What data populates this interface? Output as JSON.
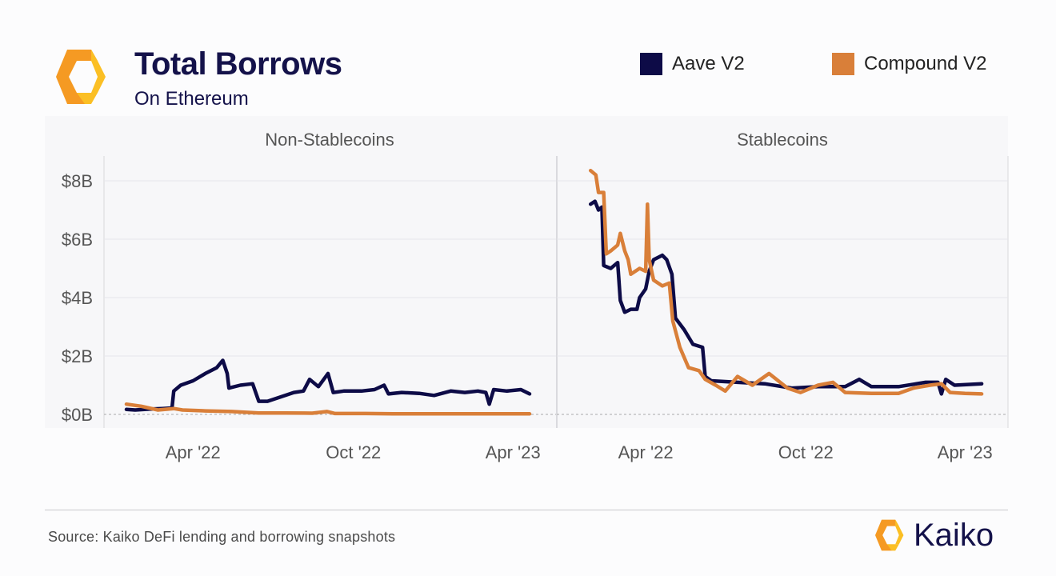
{
  "header": {
    "title": "Total Borrows",
    "subtitle": "On Ethereum"
  },
  "legend": [
    {
      "label": "Aave V2",
      "color": "#0d0b47"
    },
    {
      "label": "Compound V2",
      "color": "#d97f39"
    }
  ],
  "footer": {
    "source": "Source: Kaiko DeFi lending and borrowing snapshots",
    "brand": "Kaiko"
  },
  "colors": {
    "aave": "#0d0b47",
    "compound": "#d97f39",
    "brand_orange": "#f59a23",
    "brand_yellow": "#fbbf24"
  },
  "chart_data": [
    {
      "type": "line",
      "title": "Non-Stablecoins",
      "x_ticks": [
        "Apr '22",
        "Oct '22",
        "Apr '23"
      ],
      "y_ticks": [
        "$0B",
        "$2B",
        "$4B",
        "$6B",
        "$8B"
      ],
      "xlim": [
        "2022-01-15",
        "2023-04-30"
      ],
      "ylim": [
        0,
        8.5
      ],
      "unit": "$B",
      "series": [
        {
          "name": "Aave V2",
          "color": "#0d0b47",
          "points": [
            [
              "2022-01-15",
              0.17
            ],
            [
              "2022-01-25",
              0.15
            ],
            [
              "2022-02-10",
              0.18
            ],
            [
              "2022-02-25",
              0.2
            ],
            [
              "2022-03-08",
              0.22
            ],
            [
              "2022-03-10",
              0.8
            ],
            [
              "2022-03-18",
              1.0
            ],
            [
              "2022-04-01",
              1.15
            ],
            [
              "2022-04-15",
              1.4
            ],
            [
              "2022-04-28",
              1.6
            ],
            [
              "2022-05-05",
              1.85
            ],
            [
              "2022-05-10",
              1.4
            ],
            [
              "2022-05-12",
              0.9
            ],
            [
              "2022-05-25",
              1.0
            ],
            [
              "2022-06-08",
              1.05
            ],
            [
              "2022-06-15",
              0.45
            ],
            [
              "2022-06-25",
              0.45
            ],
            [
              "2022-07-10",
              0.6
            ],
            [
              "2022-07-25",
              0.75
            ],
            [
              "2022-08-05",
              0.8
            ],
            [
              "2022-08-12",
              1.2
            ],
            [
              "2022-08-22",
              0.95
            ],
            [
              "2022-09-02",
              1.4
            ],
            [
              "2022-09-08",
              0.75
            ],
            [
              "2022-09-20",
              0.8
            ],
            [
              "2022-10-10",
              0.8
            ],
            [
              "2022-10-25",
              0.85
            ],
            [
              "2022-11-05",
              1.0
            ],
            [
              "2022-11-10",
              0.7
            ],
            [
              "2022-11-25",
              0.75
            ],
            [
              "2022-12-15",
              0.72
            ],
            [
              "2023-01-01",
              0.65
            ],
            [
              "2023-01-20",
              0.8
            ],
            [
              "2023-02-05",
              0.75
            ],
            [
              "2023-02-20",
              0.8
            ],
            [
              "2023-03-01",
              0.75
            ],
            [
              "2023-03-05",
              0.35
            ],
            [
              "2023-03-10",
              0.85
            ],
            [
              "2023-03-25",
              0.8
            ],
            [
              "2023-04-10",
              0.85
            ],
            [
              "2023-04-20",
              0.7
            ]
          ]
        },
        {
          "name": "Compound V2",
          "color": "#d97f39",
          "points": [
            [
              "2022-01-15",
              0.35
            ],
            [
              "2022-02-01",
              0.28
            ],
            [
              "2022-02-20",
              0.15
            ],
            [
              "2022-03-10",
              0.2
            ],
            [
              "2022-03-20",
              0.15
            ],
            [
              "2022-04-15",
              0.12
            ],
            [
              "2022-05-15",
              0.1
            ],
            [
              "2022-06-15",
              0.05
            ],
            [
              "2022-07-15",
              0.05
            ],
            [
              "2022-08-15",
              0.04
            ],
            [
              "2022-09-01",
              0.1
            ],
            [
              "2022-09-10",
              0.03
            ],
            [
              "2022-10-15",
              0.03
            ],
            [
              "2022-11-15",
              0.02
            ],
            [
              "2022-12-15",
              0.02
            ],
            [
              "2023-01-15",
              0.02
            ],
            [
              "2023-02-15",
              0.02
            ],
            [
              "2023-03-15",
              0.02
            ],
            [
              "2023-04-20",
              0.02
            ]
          ]
        }
      ]
    },
    {
      "type": "line",
      "title": "Stablecoins",
      "x_ticks": [
        "Apr '22",
        "Oct '22",
        "Apr '23"
      ],
      "y_ticks": [
        "$0B",
        "$2B",
        "$4B",
        "$6B",
        "$8B"
      ],
      "xlim": [
        "2022-01-15",
        "2023-04-30"
      ],
      "ylim": [
        0,
        8.5
      ],
      "unit": "$B",
      "series": [
        {
          "name": "Aave V2",
          "color": "#0d0b47",
          "points": [
            [
              "2022-01-28",
              7.2
            ],
            [
              "2022-02-02",
              7.3
            ],
            [
              "2022-02-06",
              7.0
            ],
            [
              "2022-02-10",
              7.1
            ],
            [
              "2022-02-12",
              5.1
            ],
            [
              "2022-02-20",
              5.0
            ],
            [
              "2022-02-28",
              5.2
            ],
            [
              "2022-03-03",
              3.9
            ],
            [
              "2022-03-08",
              3.5
            ],
            [
              "2022-03-15",
              3.6
            ],
            [
              "2022-03-22",
              3.6
            ],
            [
              "2022-03-25",
              4.0
            ],
            [
              "2022-04-01",
              4.3
            ],
            [
              "2022-04-05",
              4.9
            ],
            [
              "2022-04-10",
              5.3
            ],
            [
              "2022-04-20",
              5.45
            ],
            [
              "2022-04-25",
              5.3
            ],
            [
              "2022-05-01",
              4.8
            ],
            [
              "2022-05-05",
              3.3
            ],
            [
              "2022-05-15",
              2.9
            ],
            [
              "2022-05-25",
              2.4
            ],
            [
              "2022-06-05",
              2.3
            ],
            [
              "2022-06-08",
              1.3
            ],
            [
              "2022-06-15",
              1.15
            ],
            [
              "2022-07-15",
              1.1
            ],
            [
              "2022-08-15",
              1.05
            ],
            [
              "2022-09-15",
              0.9
            ],
            [
              "2022-10-15",
              0.95
            ],
            [
              "2022-11-15",
              0.95
            ],
            [
              "2022-12-01",
              1.2
            ],
            [
              "2022-12-15",
              0.95
            ],
            [
              "2023-01-15",
              0.95
            ],
            [
              "2023-02-15",
              1.1
            ],
            [
              "2023-03-01",
              1.1
            ],
            [
              "2023-03-05",
              0.7
            ],
            [
              "2023-03-10",
              1.2
            ],
            [
              "2023-03-20",
              1.0
            ],
            [
              "2023-04-20",
              1.05
            ]
          ]
        },
        {
          "name": "Compound V2",
          "color": "#d97f39",
          "points": [
            [
              "2022-01-28",
              8.35
            ],
            [
              "2022-02-03",
              8.2
            ],
            [
              "2022-02-06",
              7.6
            ],
            [
              "2022-02-12",
              7.6
            ],
            [
              "2022-02-15",
              5.5
            ],
            [
              "2022-02-20",
              5.6
            ],
            [
              "2022-02-28",
              5.8
            ],
            [
              "2022-03-03",
              6.2
            ],
            [
              "2022-03-08",
              5.6
            ],
            [
              "2022-03-12",
              5.3
            ],
            [
              "2022-03-15",
              4.8
            ],
            [
              "2022-03-25",
              5.0
            ],
            [
              "2022-04-01",
              4.9
            ],
            [
              "2022-04-03",
              7.2
            ],
            [
              "2022-04-05",
              5.3
            ],
            [
              "2022-04-10",
              4.6
            ],
            [
              "2022-04-20",
              4.4
            ],
            [
              "2022-04-28",
              4.5
            ],
            [
              "2022-05-02",
              3.2
            ],
            [
              "2022-05-10",
              2.3
            ],
            [
              "2022-05-20",
              1.6
            ],
            [
              "2022-06-01",
              1.5
            ],
            [
              "2022-06-08",
              1.2
            ],
            [
              "2022-06-20",
              1.0
            ],
            [
              "2022-07-01",
              0.8
            ],
            [
              "2022-07-15",
              1.3
            ],
            [
              "2022-08-01",
              1.0
            ],
            [
              "2022-08-20",
              1.4
            ],
            [
              "2022-09-10",
              0.9
            ],
            [
              "2022-09-25",
              0.75
            ],
            [
              "2022-10-15",
              1.0
            ],
            [
              "2022-11-01",
              1.1
            ],
            [
              "2022-11-15",
              0.75
            ],
            [
              "2022-12-15",
              0.72
            ],
            [
              "2023-01-15",
              0.72
            ],
            [
              "2023-02-01",
              0.9
            ],
            [
              "2023-02-20",
              1.0
            ],
            [
              "2023-03-05",
              1.05
            ],
            [
              "2023-03-15",
              0.75
            ],
            [
              "2023-04-01",
              0.72
            ],
            [
              "2023-04-20",
              0.7
            ]
          ]
        }
      ]
    }
  ]
}
